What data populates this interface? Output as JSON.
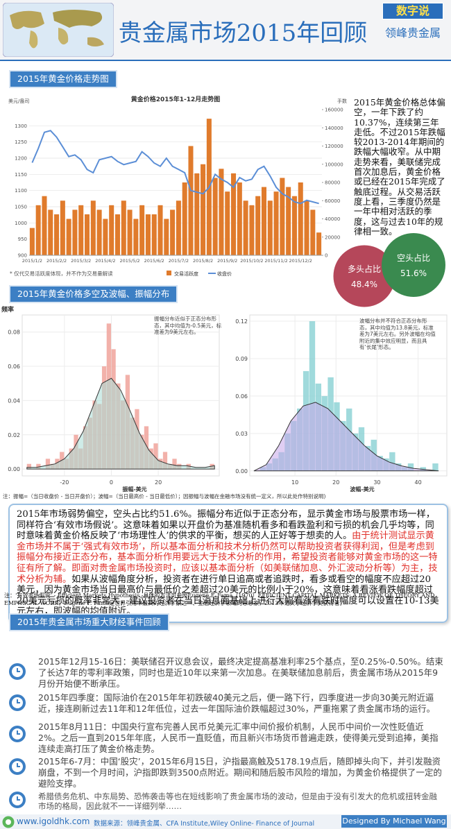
{
  "header": {
    "title": "贵金属市场2015年回顾",
    "badge": "数字说",
    "brand": "领峰贵金属"
  },
  "sections": [
    "2015年黄金价格走势图",
    "2015年黄金价格多空及波幅、振幅分布",
    "2015年贵金属市场重大财经事件回顾"
  ],
  "chart_data": [
    {
      "type": "line",
      "title": "黄金价格2015年1-12月走势图",
      "ylabel": "美元/盎司",
      "y2label": "手数",
      "categories": [
        "2015/1/2",
        null,
        null,
        null,
        "2015/2/2",
        null,
        null,
        null,
        "2015/3/2",
        null,
        null,
        null,
        "2015/4/2",
        null,
        null,
        null,
        "2015/5/2",
        null,
        null,
        null,
        "2015/6/2",
        null,
        null,
        null,
        "2015/7/2",
        null,
        null,
        null,
        "2015/8/2",
        null,
        null,
        null,
        "2015/9/2",
        null,
        null,
        null,
        "2015/10/2",
        null,
        null,
        null,
        "2015/11/2",
        null,
        null,
        null,
        "2015/12/2",
        null,
        null,
        null
      ],
      "series": [
        {
          "name": "交易活跃度",
          "color": "#e07b2c",
          "axis": "y2",
          "kind": "bar",
          "values": [
            30000,
            55000,
            65000,
            50000,
            45000,
            60000,
            40000,
            50000,
            55000,
            45000,
            60000,
            50000,
            40000,
            55000,
            45000,
            60000,
            50000,
            40000,
            55000,
            45000,
            45000,
            55000,
            40000,
            50000,
            60000,
            80000,
            120000,
            90000,
            100000,
            150000,
            85000,
            95000,
            70000,
            90000,
            80000,
            60000,
            55000,
            65000,
            75000,
            60000,
            70000,
            85000,
            75000,
            65000,
            80000,
            60000,
            50000,
            25000
          ]
        },
        {
          "name": "收盘价",
          "color": "#5b8ed6",
          "values": [
            1186,
            1230,
            1280,
            1285,
            1265,
            1235,
            1205,
            1210,
            1195,
            1165,
            1155,
            1195,
            1200,
            1205,
            1190,
            1180,
            1185,
            1190,
            1220,
            1205,
            1185,
            1175,
            1200,
            1175,
            1165,
            1155,
            1100,
            1095,
            1090,
            1110,
            1150,
            1135,
            1125,
            1110,
            1140,
            1130,
            1135,
            1165,
            1175,
            1145,
            1110,
            1090,
            1080,
            1065,
            1060,
            1070,
            1065,
            1060
          ]
        }
      ],
      "ylim": [
        900,
        1350
      ],
      "yticks": [
        900,
        950,
        1000,
        1050,
        1100,
        1150,
        1200,
        1250,
        1300
      ],
      "y2lim": [
        0,
        160000
      ],
      "y2ticks": [
        0,
        20000,
        40000,
        60000,
        80000,
        100000,
        120000,
        140000,
        160000
      ],
      "grid": true
    },
    {
      "type": "bubble",
      "categories": [
        "多头占比",
        "空头占比"
      ],
      "values": [
        48.4,
        51.6
      ],
      "value_labels": [
        "48.4%",
        "51.6%"
      ],
      "colors": [
        "#b5475a",
        "#3a8a4f"
      ]
    },
    {
      "type": "histogram",
      "ylabel": "频率",
      "xlabel": "振幅-美元",
      "annotation": "振幅分布近似于正态分布形态，其中均值为-0.5美元，标准差为9美元左右。",
      "bins": [
        -36,
        -34,
        -32,
        -30,
        -28,
        -26,
        -24,
        -22,
        -20,
        -18,
        -16,
        -14,
        -12,
        -10,
        -8,
        -6,
        -4,
        -2,
        0,
        2,
        4,
        6,
        8,
        10,
        12,
        14,
        16,
        18,
        20,
        22,
        24,
        26,
        28,
        30,
        32,
        34,
        36,
        38,
        40,
        42,
        44
      ],
      "values": [
        0.003,
        0,
        0.003,
        0,
        0.006,
        0.003,
        0.006,
        0.01,
        0.006,
        0.012,
        0.02,
        0.012,
        0.025,
        0.03,
        0.04,
        0.038,
        0.06,
        0.085,
        0.07,
        0.05,
        0.04,
        0.055,
        0.03,
        0.035,
        0.02,
        0.025,
        0.012,
        0.015,
        0.006,
        0.01,
        0.003,
        0.006,
        0.003,
        0,
        0.003,
        0,
        0,
        0,
        0,
        0.003
      ],
      "color": "#f0a39b",
      "density": {
        "x": [
          -36,
          -32,
          -28,
          -24,
          -20,
          -16,
          -12,
          -8,
          -4,
          0,
          4,
          8,
          12,
          16,
          20,
          24,
          28,
          32,
          36,
          40,
          44
        ],
        "y": [
          0.001,
          0.001,
          0.002,
          0.003,
          0.006,
          0.012,
          0.022,
          0.036,
          0.05,
          0.053,
          0.046,
          0.034,
          0.021,
          0.011,
          0.005,
          0.003,
          0.002,
          0.002,
          0.001,
          0.001,
          0.002
        ],
        "fill": "#a8dcd6"
      },
      "xlim": [
        -38,
        46
      ],
      "xticks": [
        -20,
        0,
        20
      ],
      "ylim": [
        -0.004,
        0.09
      ],
      "yticks": [
        {
          "value": 0,
          "label": "0.00"
        },
        0.02,
        0.04,
        0.06,
        0.08
      ]
    },
    {
      "type": "histogram",
      "xlabel": "波幅-美元",
      "annotation": "波幅分布并不符合正态分布形态，其中均值为13.8美元，标准差为7美元左右。另外波幅在均值附近的集中效应明显，而且具有‘长尾’形态。",
      "bins": [
        0,
        1.5,
        3,
        4.5,
        6,
        7.5,
        9,
        10.5,
        12,
        13.5,
        15,
        16.5,
        18,
        19.5,
        21,
        22.5,
        24,
        25.5,
        27,
        28.5,
        30,
        31.5,
        33,
        34.5,
        36,
        37.5,
        39,
        40.5,
        42,
        43.5,
        45
      ],
      "values": [
        0,
        0.003,
        0.006,
        0.01,
        0.015,
        0.03,
        0.04,
        0.05,
        0.08,
        0.12,
        0.07,
        0.06,
        0.075,
        0.055,
        0.04,
        0.05,
        0.03,
        0.035,
        0.02,
        0.025,
        0.012,
        0.01,
        0.015,
        0.006,
        0.003,
        0.006,
        0,
        0.003,
        0,
        0.006
      ],
      "color": "#8fd3d6",
      "density": {
        "x": [
          0,
          3,
          6,
          9,
          12,
          15,
          18,
          21,
          24,
          27,
          30,
          33,
          36,
          39,
          42,
          45
        ],
        "y": [
          0.0,
          0.005,
          0.02,
          0.04,
          0.052,
          0.055,
          0.05,
          0.04,
          0.03,
          0.02,
          0.012,
          0.007,
          0.004,
          0.002,
          0.001,
          0.0
        ],
        "fill": "#c7a6ea"
      },
      "xlim": [
        -1,
        47
      ],
      "xticks": [
        10,
        20,
        30,
        40
      ],
      "ylim": [
        -0.004,
        0.125
      ],
      "yticks": [
        {
          "value": 0,
          "label": "0.00"
        },
        0.03,
        0.06,
        0.09,
        0.12
      ]
    }
  ],
  "summary": "2015年黄金价格总体偏空，一年下跌了约10.37%，连续第三年走低。不过2015年跌幅较2013-2014年期间的跌幅大幅收窄。从中期走势来看，美联储完成首次加息后，黄金价格或已经在2015年完成了触底过程。从交易活跃度上看，三季度仍然是一年中相对活跃的季度，这与过去10年的规律相一致。",
  "chart_note": "* 仅代交易活跃度体现，并不作为交易量解读",
  "histogram_note": "注：振幅=（当日收盘价 - 当日开盘价）；波幅=（当日最高价 - 当日最低价）；因振幅与波幅在金融市场没有统一定义，所以此处作特别说明)",
  "analysis": [
    "2015年市场弱势偏空，空头占比约51.6%。振幅分布近似于正态分布，显示黄金市场与股票市场一样，同样符合‘有效市场假说’。这意味着如果以开盘价为基准随机看多和看跌盈利和亏损的机会几乎均等，同时意味着黄金价格反映了‘市场理性人’的供求的平衡，想买的人正好等于想卖的人。",
    "由于统计测试显示黄金市场并不属于‘强式有效市场’，所以基本面分析和技术分析仍然可以帮助投资者获得利润，但是考虑到振幅分布接近正态分布，基本面分析作用要远大于技术分析的作用，希望投资者能够对黄金市场的这一特征有所了解。即面对贵金属市场投资时，应该以基本面分析（如美联储加息、外汇波动分析等）为主，技术分析为辅。",
    "如果从波幅角度分析，投资者在进行单日追高或者追跌时，看多或看空的幅度不应超过20美元，因为黄金市场当日最高价与最低价之差超过20美元的比例小于20%，这意味着看涨看跌幅度超过20美元亏损的概率非常大，建议投资者在当日消息面基础上进行大幅看涨看跌时幅度可以设置在10-13美元左右，即波幅的均值附近。"
  ],
  "footnote": "注：‘有效市场假说’ - Efficient Markets Hypothesis -具体的方法可参照Eugene F. Fama（1970）EFFICIENT CAPITAL MARKETS: A REVIEW OF THEORY AND EMPIRICAL WORK，Eugene F. Fama是世界引用率最高的经济学家之一、金融经济学领域的思想家，2013年诺贝尔经济学奖获得者。",
  "events": [
    "2015年12月15-16日：美联储召开议息会议，最终决定提高基准利率25个基点，至0.25%-0.50%。结束了长达7年的零利率政策，同时也是近10年以来第一次加息。在美联储加息前后，贵金属市场从2015年9月份开始便不断承压。",
    "2015年四季度：国际油价在2015年年初跌破40美元之后，便一路下行，四季度进一步向30美元附近逼近，接连刷新过去11年和12年低位，过去一年国际油价跌幅超过30%，严重拖累了贵金属市场的运行。",
    "2015年8月11日：中国央行宣布完善人民币兑美元汇率中间价报价机制，人民币中间价一次性贬值近2%。之后一直到2015年年底，人民币一直贬值，而且新兴市场货币普遍走跌，使得美元受到追捧，美指连续走高打压了黄金价格走势。",
    "2015年6-7月：中国‘股灾’，2015年6月15日，沪指最高触及5178.19点后，随即掉头向下，并引发融资崩盘，不到一个月时间，沪指即跌到3500点附近。期间和随后股市风险的增加，为黄金价格提供了一定的避险支撑。",
    "希腊债务危机、中东局势、恐怖袭击等也在短线影响了贵金属市场的波动，但是由于没有引发大的危机或扭转金融市场的格局，因此就不一一详细列举……"
  ],
  "footer": {
    "site": "www.igoldhk.com",
    "source": "数据来源：领峰贵金属、CFA Institute,Wiley Online- Finance of Journal",
    "designer": "Designed By Michael Wang"
  }
}
